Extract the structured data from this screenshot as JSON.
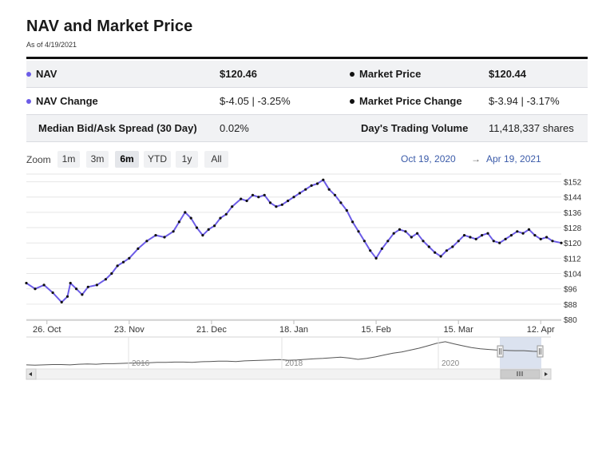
{
  "header": {
    "title": "NAV and Market Price",
    "as_of": "As of 4/19/2021"
  },
  "stats": {
    "nav_label": "NAV",
    "nav_value": "$120.46",
    "market_price_label": "Market Price",
    "market_price_value": "$120.44",
    "nav_change_label": "NAV Change",
    "nav_change_value": "$-4.05 | -3.25%",
    "market_price_change_label": "Market Price Change",
    "market_price_change_value": "$-3.94 | -3.17%",
    "spread_label": "Median Bid/Ask Spread (30 Day)",
    "spread_value": "0.02%",
    "volume_label": "Day's Trading Volume",
    "volume_value": "11,418,337 shares"
  },
  "zoom": {
    "label": "Zoom",
    "buttons": [
      "1m",
      "3m",
      "6m",
      "YTD",
      "1y",
      "All"
    ],
    "active": "6m",
    "from_date": "Oct 19, 2020",
    "arrow": "→",
    "to_date": "Apr 19, 2021"
  },
  "colors": {
    "nav_line": "#6c5ce7",
    "market_dots": "#111111",
    "navigator_mask": "#cfd8ea"
  },
  "chart_data": {
    "type": "line",
    "title": "NAV and Market Price",
    "ylim": [
      80,
      156
    ],
    "y_ticks": [
      80,
      88,
      96,
      104,
      112,
      120,
      128,
      136,
      144,
      152
    ],
    "y_tick_labels": [
      "$80",
      "$88",
      "$96",
      "$104",
      "$112",
      "$120",
      "$128",
      "$136",
      "$144",
      "$152"
    ],
    "x_ticks": [
      {
        "label": "26. Oct",
        "t": 7
      },
      {
        "label": "23. Nov",
        "t": 35
      },
      {
        "label": "21. Dec",
        "t": 63
      },
      {
        "label": "18. Jan",
        "t": 91
      },
      {
        "label": "15. Feb",
        "t": 119
      },
      {
        "label": "15. Mar",
        "t": 147
      },
      {
        "label": "12. Apr",
        "t": 175
      }
    ],
    "x_range_days": [
      0,
      182
    ],
    "series": [
      {
        "name": "NAV",
        "x": [
          0,
          3,
          6,
          9,
          12,
          14,
          15,
          17,
          19,
          21,
          24,
          27,
          29,
          31,
          33,
          35,
          38,
          41,
          44,
          47,
          50,
          52,
          54,
          56,
          58,
          60,
          62,
          64,
          66,
          68,
          70,
          73,
          75,
          77,
          79,
          81,
          83,
          85,
          87,
          89,
          91,
          93,
          95,
          97,
          99,
          101,
          103,
          105,
          107,
          109,
          111,
          113,
          115,
          117,
          119,
          121,
          123,
          125,
          127,
          129,
          131,
          133,
          135,
          137,
          139,
          141,
          143,
          145,
          147,
          149,
          151,
          153,
          155,
          157,
          159,
          161,
          163,
          165,
          167,
          169,
          171,
          173,
          175,
          177,
          179,
          182
        ],
        "values": [
          99,
          96,
          98,
          94,
          89,
          92,
          99,
          96,
          93,
          97,
          98,
          101,
          104,
          108,
          110,
          112,
          117,
          121,
          124,
          123,
          126,
          131,
          136,
          133,
          128,
          124,
          127,
          129,
          133,
          135,
          139,
          143,
          142,
          145,
          144,
          145,
          141,
          139,
          140,
          142,
          144,
          146,
          148,
          150,
          151,
          153,
          148,
          145,
          141,
          137,
          131,
          126,
          121,
          116,
          112,
          117,
          121,
          125,
          127,
          126,
          123,
          125,
          121,
          118,
          115,
          113,
          116,
          118,
          121,
          124,
          123,
          122,
          124,
          125,
          121,
          120,
          122,
          124,
          126,
          125,
          127,
          124,
          122,
          123,
          121,
          120
        ]
      },
      {
        "name": "Market Price",
        "marker": "dot",
        "note": "tracks NAV closely"
      }
    ],
    "navigator": {
      "year_labels": [
        "2016",
        "2018",
        "2020"
      ],
      "values": [
        78,
        77,
        78,
        79,
        79,
        78,
        80,
        81,
        80,
        82,
        82,
        83,
        84,
        84,
        85,
        86,
        86,
        87,
        87,
        86,
        88,
        89,
        90,
        90,
        89,
        91,
        92,
        93,
        94,
        95,
        93,
        94,
        96,
        98,
        99,
        101,
        103,
        100,
        96,
        99,
        104,
        110,
        116,
        120,
        126,
        132,
        140,
        148,
        153,
        146,
        140,
        134,
        130,
        128,
        126,
        125,
        124,
        124,
        122,
        121
      ]
    }
  }
}
